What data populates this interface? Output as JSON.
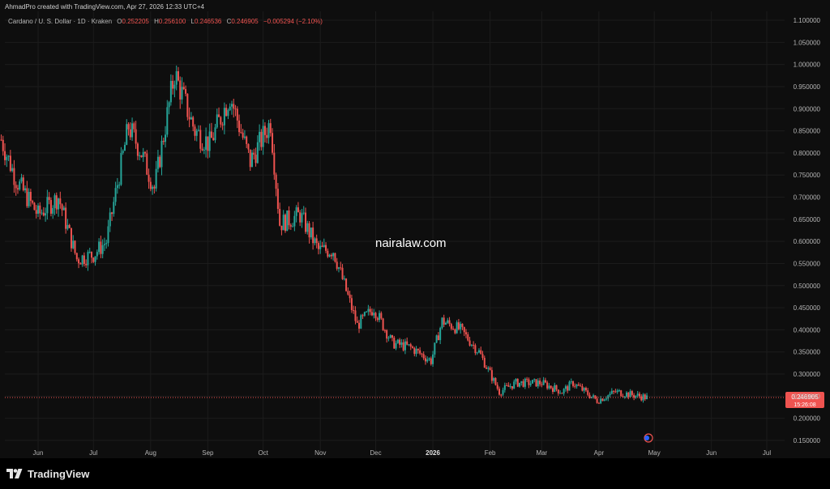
{
  "header": {
    "credit": "AhmadPro created with TradingView.com, Apr 27, 2026 12:33 UTC+4"
  },
  "legend": {
    "symbol": "Cardano / U. S. Dollar · 1D · Kraken",
    "open_label": "O",
    "open": "0.252205",
    "high_label": "H",
    "high": "0.256100",
    "low_label": "L",
    "low": "0.246536",
    "close_label": "C",
    "close": "0.246905",
    "change": "−0.005294 (−2.10%)"
  },
  "watermark": "nairalaw.com",
  "price_tag": {
    "price": "0.246905",
    "countdown": "15:26:08"
  },
  "footer": {
    "brand": "TradingView"
  },
  "colors": {
    "up": "#26a69a",
    "down": "#ef5350",
    "background": "#0e0e0e",
    "grid": "#1c1c1c"
  },
  "chart_data": {
    "type": "candlestick",
    "series": [
      {
        "name": "Cardano / U. S. Dollar · 1D · Kraken"
      }
    ],
    "ylim": [
      0.13,
      1.12
    ],
    "y_ticks": [
      0.15,
      0.2,
      0.25,
      0.3,
      0.35,
      0.4,
      0.45,
      0.5,
      0.55,
      0.6,
      0.65,
      0.7,
      0.75,
      0.8,
      0.85,
      0.9,
      0.95,
      1.0,
      1.05,
      1.1
    ],
    "y_tick_labels": [
      "0.150000",
      "0.200000",
      "0.250000",
      "0.300000",
      "0.350000",
      "0.400000",
      "0.450000",
      "0.500000",
      "0.550000",
      "0.600000",
      "0.650000",
      "0.700000",
      "0.750000",
      "0.800000",
      "0.850000",
      "0.900000",
      "0.950000",
      "1.000000",
      "1.050000",
      "1.100000"
    ],
    "x_ticks": [
      {
        "label": "Jun",
        "date": "2025-06-01",
        "bold": false
      },
      {
        "label": "Jul",
        "date": "2025-07-01",
        "bold": false
      },
      {
        "label": "Aug",
        "date": "2025-08-01",
        "bold": false
      },
      {
        "label": "Sep",
        "date": "2025-09-01",
        "bold": false
      },
      {
        "label": "Oct",
        "date": "2025-10-01",
        "bold": false
      },
      {
        "label": "Nov",
        "date": "2025-11-01",
        "bold": false
      },
      {
        "label": "Dec",
        "date": "2025-12-01",
        "bold": false
      },
      {
        "label": "2026",
        "date": "2026-01-01",
        "bold": true
      },
      {
        "label": "Feb",
        "date": "2026-02-01",
        "bold": false
      },
      {
        "label": "Mar",
        "date": "2026-03-01",
        "bold": false
      },
      {
        "label": "Apr",
        "date": "2026-04-01",
        "bold": false
      },
      {
        "label": "May",
        "date": "2026-05-01",
        "bold": false
      },
      {
        "label": "Jun",
        "date": "2026-06-01",
        "bold": false
      },
      {
        "label": "Jul",
        "date": "2026-07-01",
        "bold": false
      }
    ],
    "path": [
      {
        "date": "2025-05-12",
        "close": 0.83
      },
      {
        "date": "2025-05-20",
        "close": 0.74
      },
      {
        "date": "2025-06-01",
        "close": 0.66
      },
      {
        "date": "2025-06-12",
        "close": 0.7
      },
      {
        "date": "2025-06-22",
        "close": 0.56
      },
      {
        "date": "2025-07-01",
        "close": 0.57
      },
      {
        "date": "2025-07-08",
        "close": 0.6
      },
      {
        "date": "2025-07-20",
        "close": 0.86
      },
      {
        "date": "2025-07-27",
        "close": 0.8
      },
      {
        "date": "2025-08-03",
        "close": 0.72
      },
      {
        "date": "2025-08-14",
        "close": 0.98
      },
      {
        "date": "2025-08-25",
        "close": 0.85
      },
      {
        "date": "2025-09-02",
        "close": 0.82
      },
      {
        "date": "2025-09-13",
        "close": 0.93
      },
      {
        "date": "2025-09-24",
        "close": 0.78
      },
      {
        "date": "2025-10-05",
        "close": 0.87
      },
      {
        "date": "2025-10-10",
        "close": 0.64
      },
      {
        "date": "2025-10-21",
        "close": 0.66
      },
      {
        "date": "2025-10-31",
        "close": 0.58
      },
      {
        "date": "2025-11-08",
        "close": 0.58
      },
      {
        "date": "2025-11-21",
        "close": 0.41
      },
      {
        "date": "2025-11-30",
        "close": 0.45
      },
      {
        "date": "2025-12-10",
        "close": 0.37
      },
      {
        "date": "2025-12-20",
        "close": 0.36
      },
      {
        "date": "2025-12-31",
        "close": 0.33
      },
      {
        "date": "2026-01-06",
        "close": 0.42
      },
      {
        "date": "2026-01-16",
        "close": 0.4
      },
      {
        "date": "2026-01-26",
        "close": 0.35
      },
      {
        "date": "2026-02-06",
        "close": 0.26
      },
      {
        "date": "2026-02-15",
        "close": 0.28
      },
      {
        "date": "2026-03-01",
        "close": 0.28
      },
      {
        "date": "2026-03-12",
        "close": 0.26
      },
      {
        "date": "2026-03-18",
        "close": 0.28
      },
      {
        "date": "2026-03-31",
        "close": 0.24
      },
      {
        "date": "2026-04-10",
        "close": 0.26
      },
      {
        "date": "2026-04-27",
        "close": 0.246905
      }
    ],
    "last_price": 0.246905,
    "grid": true
  }
}
